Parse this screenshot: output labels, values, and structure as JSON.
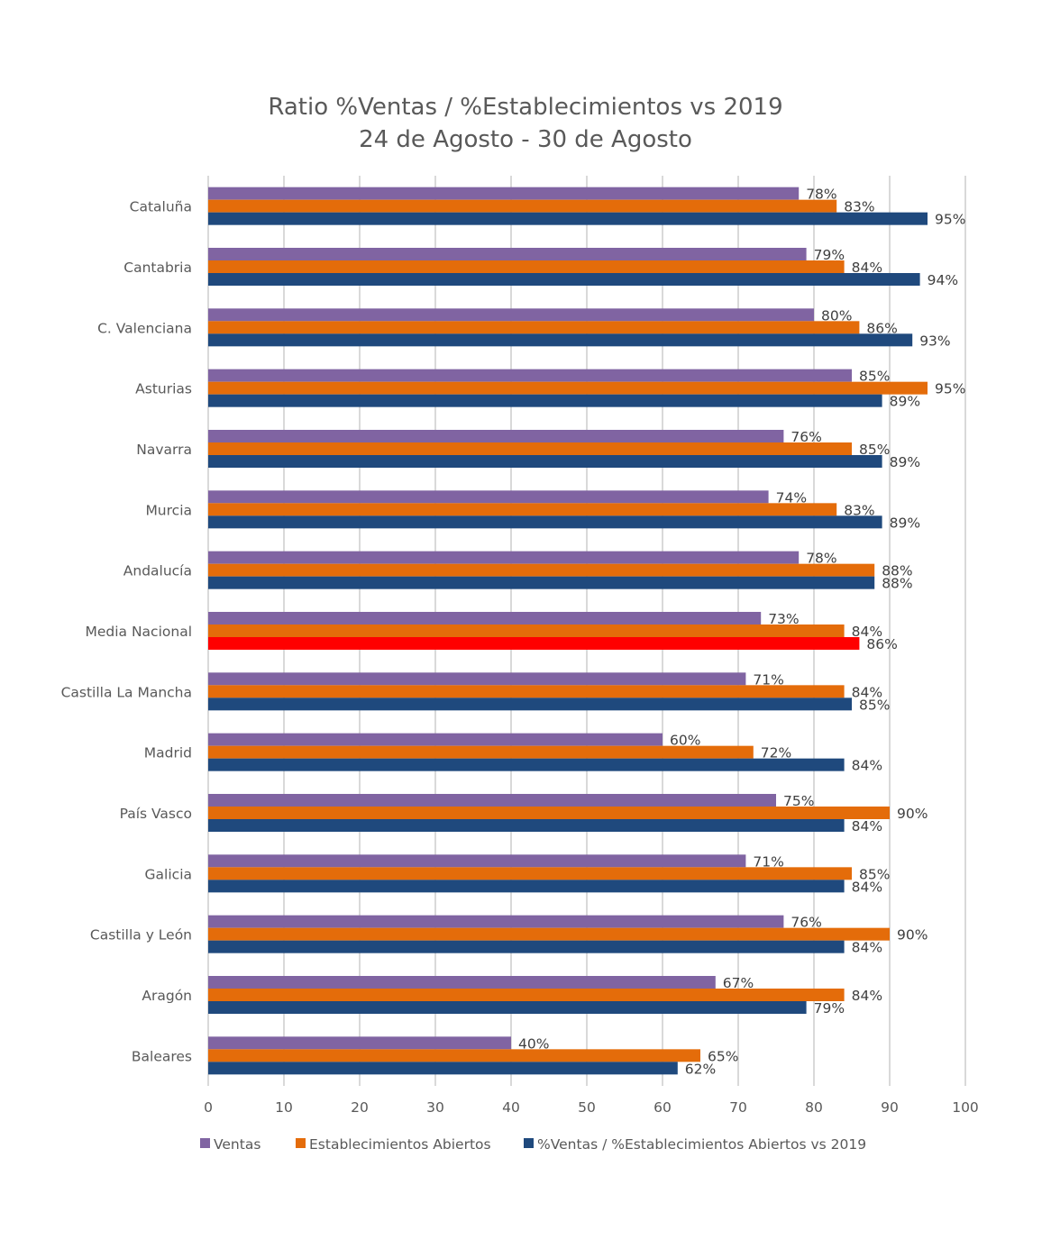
{
  "chart_data": {
    "type": "bar",
    "orientation": "horizontal",
    "title": "Ratio %Ventas / %Establecimientos  vs 2019",
    "subtitle": "24 de Agosto - 30 de Agosto",
    "xlabel": "",
    "ylabel": "",
    "xlim": [
      0,
      100
    ],
    "xticks": [
      "0",
      "10",
      "20",
      "30",
      "40",
      "50",
      "60",
      "70",
      "80",
      "90",
      "100"
    ],
    "grid": true,
    "legend_position": "bottom",
    "categories": [
      "Cataluña",
      "Cantabria",
      "C. Valenciana",
      "Asturias",
      "Navarra",
      "Murcia",
      "Andalucía",
      "Media Nacional",
      "Castilla La Mancha",
      "Madrid",
      "País Vasco",
      "Galicia",
      "Castilla y León",
      "Aragón",
      "Baleares"
    ],
    "series": [
      {
        "name": "Ventas",
        "color": "#8064A2",
        "values": [
          78,
          79,
          80,
          85,
          76,
          74,
          78,
          73,
          71,
          60,
          75,
          71,
          76,
          67,
          40
        ]
      },
      {
        "name": "Establecimientos Abiertos",
        "color": "#E46C0A",
        "values": [
          83,
          84,
          86,
          95,
          85,
          83,
          88,
          84,
          84,
          72,
          90,
          85,
          90,
          84,
          65
        ]
      },
      {
        "name": "%Ventas / %Establecimientos Abiertos vs 2019",
        "color": "#1F497D",
        "highlight": {
          "category": "Media Nacional",
          "color": "#FF0000"
        },
        "values": [
          95,
          94,
          93,
          89,
          89,
          89,
          88,
          86,
          85,
          84,
          84,
          84,
          84,
          79,
          62
        ]
      }
    ],
    "value_suffix": "%"
  }
}
